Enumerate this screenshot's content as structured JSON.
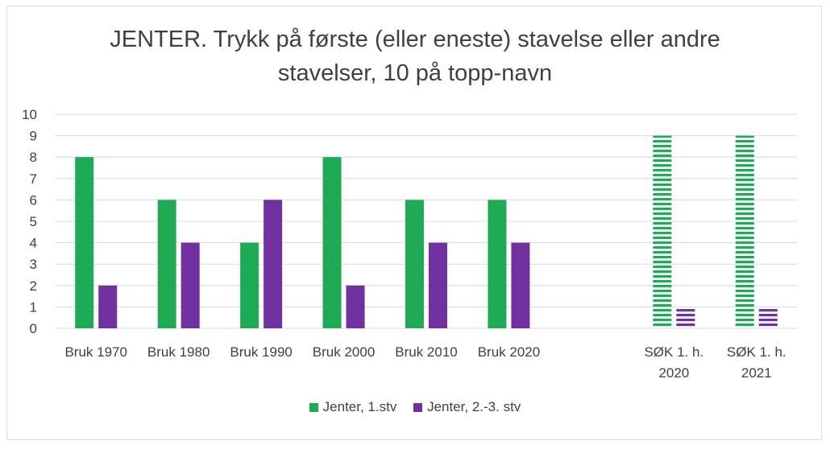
{
  "chart_data": {
    "type": "bar",
    "title": "JENTER. Trykk på første (eller eneste) stavelse eller andre stavelser, 10 på topp-navn",
    "title_lines": [
      "JENTER. Trykk på første (eller eneste) stavelse eller andre",
      "stavelser, 10 på topp-navn"
    ],
    "categories": [
      "Bruk 1970",
      "Bruk 1980",
      "Bruk 1990",
      "Bruk 2000",
      "Bruk 2010",
      "Bruk 2020",
      "",
      "SØK 1. h. 2020",
      "SØK 1. h. 2021"
    ],
    "category_lines": [
      [
        "Bruk 1970"
      ],
      [
        "Bruk 1980"
      ],
      [
        "Bruk 1990"
      ],
      [
        "Bruk 2000"
      ],
      [
        "Bruk 2010"
      ],
      [
        "Bruk 2020"
      ],
      [
        ""
      ],
      [
        "SØK 1. h.",
        "2020"
      ],
      [
        "SØK 1. h.",
        "2021"
      ]
    ],
    "series": [
      {
        "name": "Jenter, 1.stv",
        "color": "#1faa55",
        "values": [
          8,
          6,
          4,
          8,
          6,
          6,
          null,
          9,
          9
        ]
      },
      {
        "name": "Jenter, 2.-3. stv",
        "color": "#7030a0",
        "values": [
          2,
          4,
          6,
          2,
          4,
          4,
          null,
          0.9,
          0.9
        ]
      }
    ],
    "striped_categories": [
      7,
      8
    ],
    "y_ticks": [
      0,
      1,
      2,
      3,
      4,
      5,
      6,
      7,
      8,
      9,
      10
    ],
    "ylim": [
      0,
      10
    ],
    "grid": true,
    "legend_position": "bottom",
    "xlabel": "",
    "ylabel": ""
  }
}
